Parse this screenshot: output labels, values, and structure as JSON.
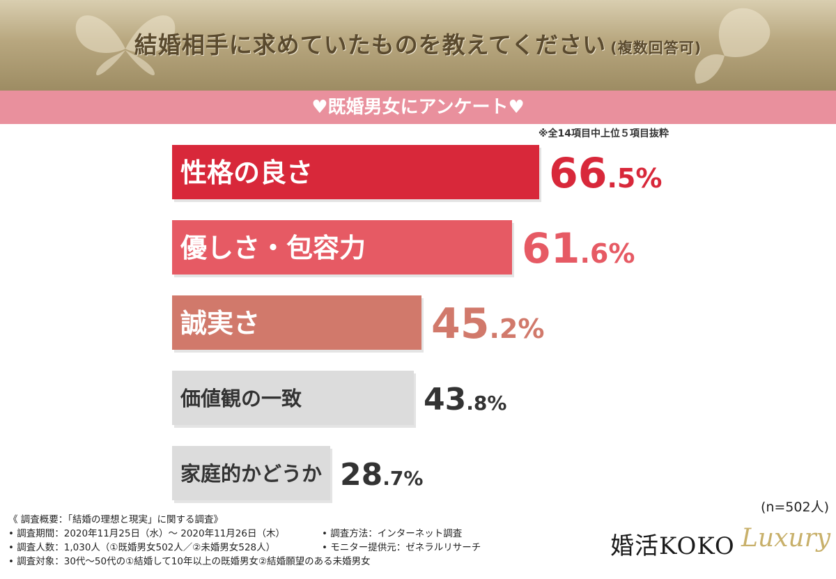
{
  "header": {
    "title": "結婚相手に求めていたものを教えてください",
    "subtitle": "(複数回答可)",
    "survey_label": "♥既婚男女にアンケート♥",
    "note": "※全14項目中上位５項目抜粋"
  },
  "chart_data": {
    "type": "bar",
    "orientation": "horizontal",
    "categories": [
      "性格の良さ",
      "優しさ・包容力",
      "誠実さ",
      "価値観の一致",
      "家庭的かどうか"
    ],
    "values": [
      66.5,
      61.6,
      45.2,
      43.8,
      28.7
    ],
    "value_labels": [
      {
        "int": "66",
        "dec": ".5%"
      },
      {
        "int": "61",
        "dec": ".6%"
      },
      {
        "int": "45",
        "dec": ".2%"
      },
      {
        "int": "43",
        "dec": ".8%"
      },
      {
        "int": "28",
        "dec": ".7%"
      }
    ],
    "unit": "%",
    "bar_colors": [
      "#d8283a",
      "#e65a64",
      "#d1796b",
      "#dcdcdc",
      "#dcdcdc"
    ],
    "label_text_colors": [
      "#ffffff",
      "#ffffff",
      "#ffffff",
      "#333333",
      "#333333"
    ],
    "value_colors": [
      "#d8283a",
      "#e65a64",
      "#d1796b",
      "#333333",
      "#333333"
    ],
    "xlim": [
      0,
      66.5
    ]
  },
  "sample_size": "(n=502人)",
  "footer": {
    "overview": "《 調査概要：「結婚の理想と現実」に関する調査》",
    "period": "• 調査期間：2020年11月25日（水）〜 2020年11月26日（木）",
    "method": "• 調査方法：インターネット調査",
    "count": "• 調査人数：1,030人（①既婚男女502人／②未婚男女528人）",
    "provider": "• モニター提供元：ゼネラルリサーチ",
    "target": "• 調査対象：30代〜50代の①結婚して10年以上の既婚男女②結婚願望のある未婚男女"
  },
  "logo": {
    "text": "婚活KOKO",
    "script": "Luxury"
  },
  "colors": {
    "header_gold": "#b8a77f",
    "band_pink": "#e9909d",
    "title_text": "#5a4a2e"
  }
}
